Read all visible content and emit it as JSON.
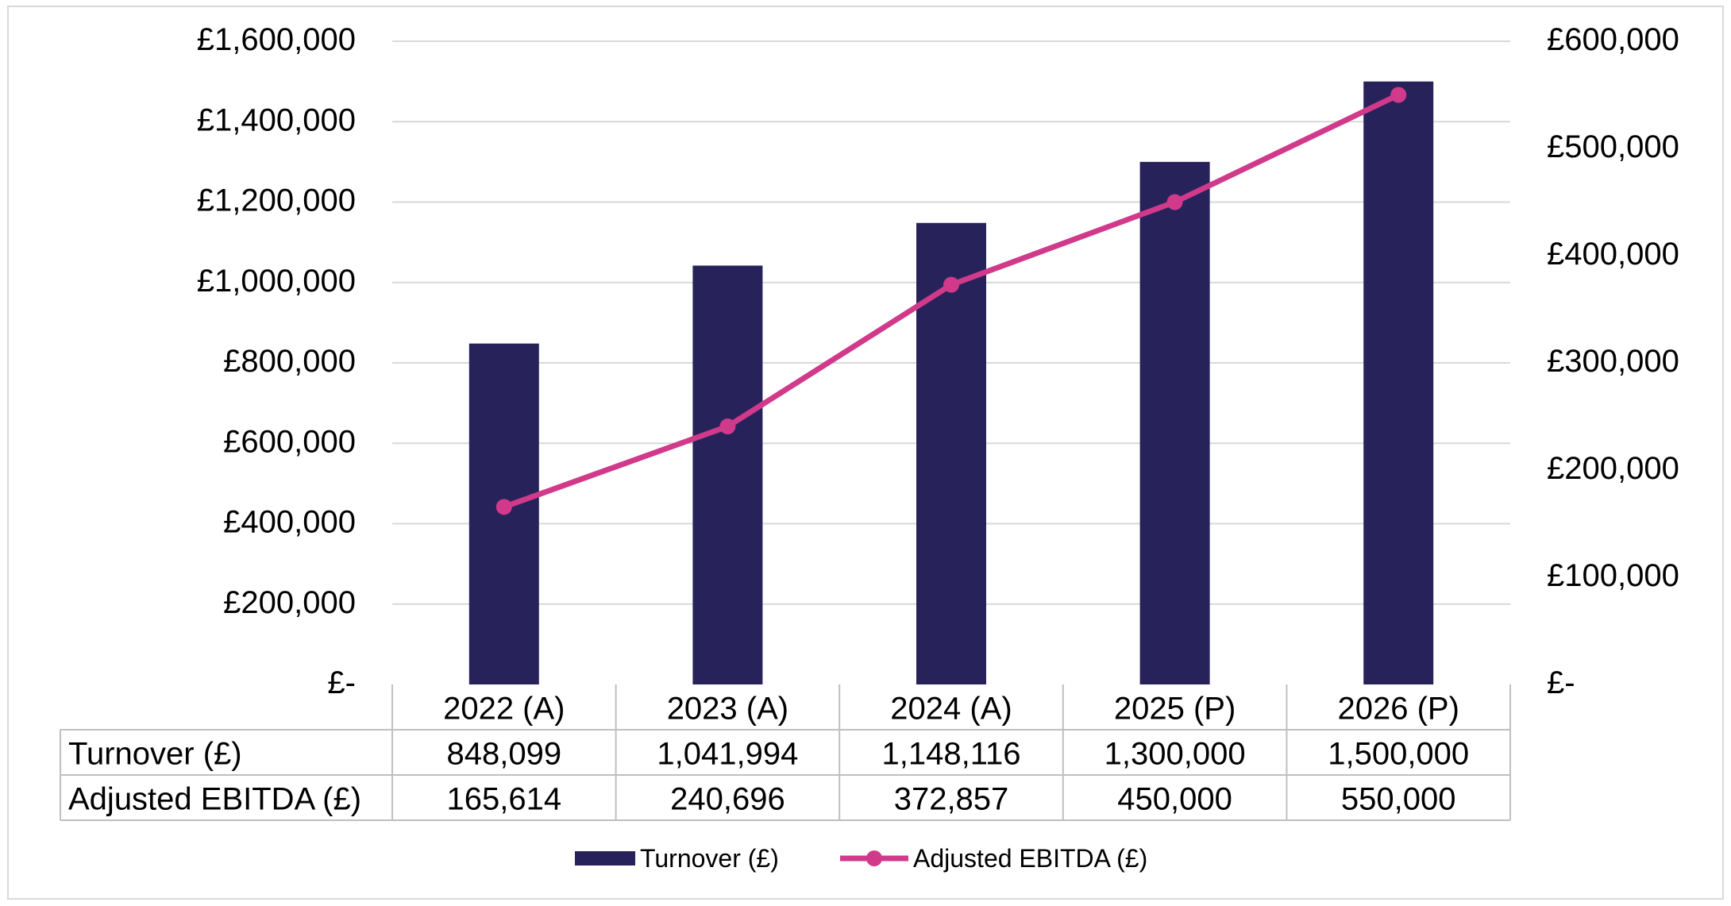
{
  "chart_data": {
    "type": "bar+line",
    "categories": [
      "2022 (A)",
      "2023 (A)",
      "2024 (A)",
      "2025 (P)",
      "2026 (P)"
    ],
    "series": [
      {
        "name": "Turnover (£)",
        "type": "bar",
        "axis": "left",
        "color": "#27235a",
        "values": [
          848099,
          1041994,
          1148116,
          1300000,
          1500000
        ],
        "labels": [
          "848,099",
          "1,041,994",
          "1,148,116",
          "1,300,000",
          "1,500,000"
        ]
      },
      {
        "name": "Adjusted EBITDA (£)",
        "type": "line",
        "axis": "right",
        "color": "#d1398a",
        "values": [
          165614,
          240696,
          372857,
          450000,
          550000
        ],
        "labels": [
          "165,614",
          "240,696",
          "372,857",
          "450,000",
          "550,000"
        ]
      }
    ],
    "y_left": {
      "ylim": [
        0,
        1600000
      ],
      "ticks": [
        0,
        200000,
        400000,
        600000,
        800000,
        1000000,
        1200000,
        1400000,
        1600000
      ],
      "tick_labels": [
        "£-",
        "£200,000",
        "£400,000",
        "£600,000",
        "£800,000",
        "£1,000,000",
        "£1,200,000",
        "£1,400,000",
        "£1,600,000"
      ]
    },
    "y_right": {
      "ylim": [
        0,
        600000
      ],
      "ticks": [
        0,
        100000,
        200000,
        300000,
        400000,
        500000,
        600000
      ],
      "tick_labels": [
        "£-",
        "£100,000",
        "£200,000",
        "£300,000",
        "£400,000",
        "£500,000",
        "£600,000"
      ]
    },
    "grid": true,
    "legend": "bottom",
    "data_table": true,
    "colors": {
      "grid": "#d9d9d9",
      "table_border": "#bfbfbf",
      "frame": "#d9d9d9"
    }
  }
}
